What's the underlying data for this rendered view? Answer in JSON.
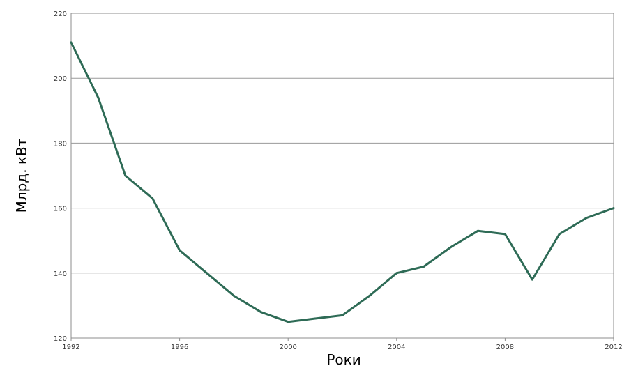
{
  "chart_data": {
    "type": "line",
    "title": "",
    "xlabel": "Роки",
    "ylabel": "Млрд. кВт",
    "xlim": [
      1992,
      2012
    ],
    "ylim": [
      120,
      220
    ],
    "x_ticks": [
      1992,
      1996,
      2000,
      2004,
      2008,
      2012
    ],
    "y_ticks": [
      120,
      140,
      160,
      180,
      200,
      220
    ],
    "grid": "horizontal",
    "legend": "none",
    "series": [
      {
        "color": "#2e6b56",
        "x": [
          1992,
          1993,
          1994,
          1995,
          1996,
          1997,
          1998,
          1999,
          2000,
          2001,
          2002,
          2003,
          2004,
          2005,
          2006,
          2007,
          2008,
          2009,
          2010,
          2011,
          2012
        ],
        "values": [
          211,
          194,
          170,
          163,
          147,
          140,
          133,
          128,
          125,
          126,
          127,
          133,
          140,
          142,
          148,
          153,
          152,
          138,
          152,
          157,
          160
        ]
      }
    ]
  }
}
